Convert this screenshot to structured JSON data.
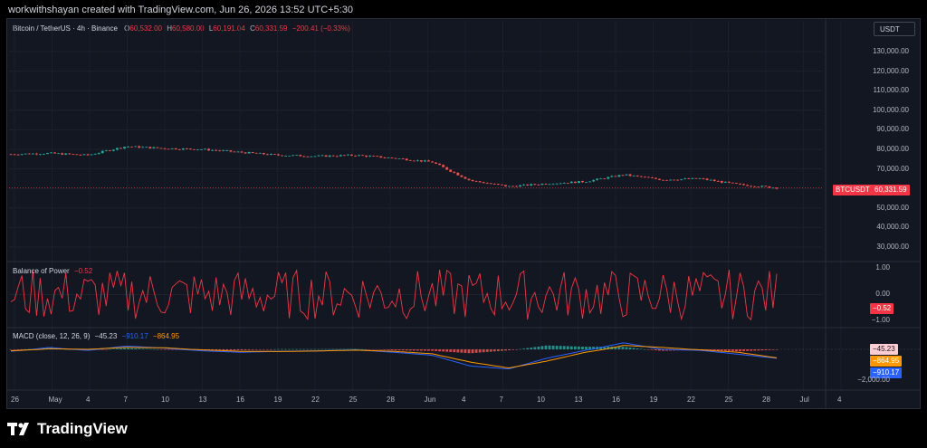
{
  "caption": "workwithshayan created with TradingView.com, Jun 26, 2026 13:52 UTC+5:30",
  "symbol": {
    "name": "Bitcoin / TetherUS · 4h · Binance",
    "open_label": "O",
    "open": "60,532.00",
    "high_label": "H",
    "high": "60,580.00",
    "low_label": "L",
    "low": "60,191.04",
    "close_label": "C",
    "close": "60,331.59",
    "change": "−200.41 (−0.33%)"
  },
  "currency_button": "USDT",
  "price_axis": {
    "labels": [
      "130,000.00",
      "120,000.00",
      "110,000.00",
      "100,000.00",
      "90,000.00",
      "80,000.00",
      "70,000.00",
      "60,000.00",
      "50,000.00",
      "40,000.00",
      "30,000.00"
    ],
    "last_price_tag": "60,331.59",
    "symbol_tag": "BTCUSDT"
  },
  "bop": {
    "title": "Balance of Power",
    "value": "−0.52",
    "axis_labels": [
      "1.00",
      "0.00",
      "−1.00"
    ],
    "tag": "−0.52"
  },
  "macd": {
    "title": "MACD (close, 12, 26, 9)",
    "hist": "−45.23",
    "macd": "−910.17",
    "signal": "−864.95",
    "tags": [
      "−45.23",
      "−864.95",
      "−910.17"
    ],
    "axis_label": "−2,000.00"
  },
  "time_axis": {
    "labels": [
      "26",
      "May",
      "4",
      "7",
      "10",
      "13",
      "16",
      "19",
      "22",
      "25",
      "28",
      "Jun",
      "4",
      "7",
      "10",
      "13",
      "16",
      "19",
      "22",
      "25",
      "28",
      "Jul",
      "4"
    ]
  },
  "colors": {
    "up": "#26a69a",
    "down": "#ef5350",
    "bop": "#f23645",
    "macd_line": "#2962ff",
    "signal_line": "#ff9800",
    "background": "#131722",
    "page": "#000000"
  },
  "brand": "TradingView",
  "chart_data": {
    "type": "candlestick",
    "interval": "4h",
    "x": [
      "Apr 26",
      "May 1",
      "May 4",
      "May 7",
      "May 10",
      "May 13",
      "May 16",
      "May 19",
      "May 22",
      "May 25",
      "May 28",
      "Jun 1",
      "Jun 4",
      "Jun 7",
      "Jun 10",
      "Jun 13",
      "Jun 16",
      "Jun 19",
      "Jun 22",
      "Jun 25",
      "Jun 26"
    ],
    "close_approx": [
      77500,
      78000,
      77000,
      81500,
      80500,
      80000,
      78500,
      77000,
      76500,
      77000,
      75500,
      73500,
      64000,
      61000,
      62500,
      63500,
      67000,
      64500,
      65000,
      62000,
      60331.59
    ],
    "ylim": [
      25000,
      135000
    ],
    "bop_ylim": [
      -1,
      1
    ],
    "macd_series_approx": {
      "macd": [
        -200,
        150,
        -100,
        250,
        100,
        -150,
        -300,
        -200,
        -150,
        -50,
        -300,
        -600,
        -1700,
        -2000,
        -900,
        -100,
        500,
        0,
        -100,
        -500,
        -910.17
      ],
      "signal": [
        -150,
        50,
        0,
        150,
        120,
        -50,
        -200,
        -220,
        -170,
        -80,
        -200,
        -450,
        -1300,
        -1900,
        -1200,
        -300,
        300,
        150,
        -50,
        -300,
        -864.95
      ]
    }
  }
}
